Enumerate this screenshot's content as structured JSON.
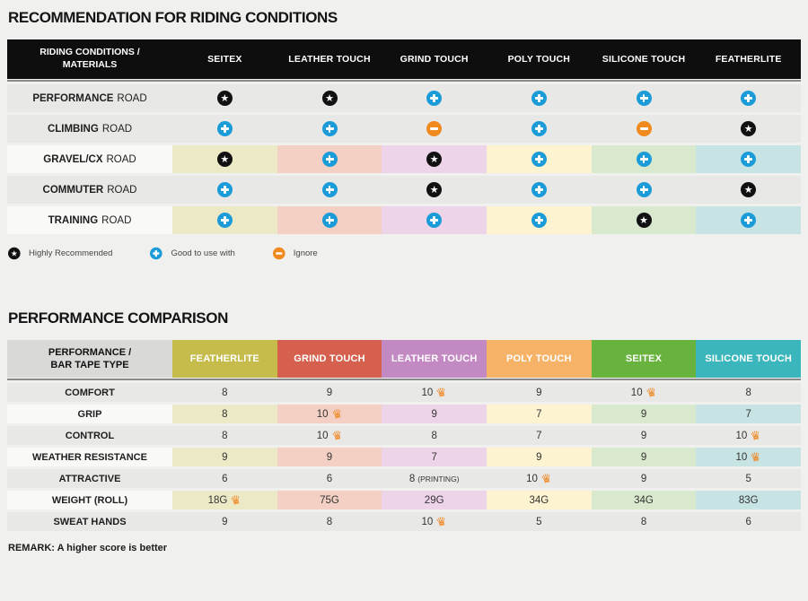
{
  "colors": {
    "icon_star_bg": "#111111",
    "icon_plus_bg": "#1b9cd8",
    "icon_minus_bg": "#f08a1e",
    "crown": "#f0861f",
    "column_tints": [
      "#eceac6",
      "#f3d0c3",
      "#eed4e9",
      "#fdf3d0",
      "#d8e9ce",
      "#c8e3e4"
    ]
  },
  "section1": {
    "title": "RECOMMENDATION FOR RIDING CONDITIONS",
    "table": {
      "corner_line1": "RIDING CONDITIONS /",
      "corner_line2": "MATERIALS",
      "columns": [
        "SEITEX",
        "LEATHER TOUCH",
        "GRIND TOUCH",
        "POLY TOUCH",
        "SILICONE TOUCH",
        "FEATHERLITE"
      ],
      "rows": [
        {
          "label_bold": "PERFORMANCE",
          "label_rest": "ROAD",
          "tinted": false,
          "marks": [
            "star",
            "star",
            "plus",
            "plus",
            "plus",
            "plus"
          ]
        },
        {
          "label_bold": "CLIMBING",
          "label_rest": "ROAD",
          "tinted": false,
          "marks": [
            "plus",
            "plus",
            "minus",
            "plus",
            "minus",
            "star"
          ]
        },
        {
          "label_bold": "GRAVEL/CX",
          "label_rest": "ROAD",
          "tinted": true,
          "marks": [
            "star",
            "plus",
            "star",
            "plus",
            "plus",
            "plus"
          ]
        },
        {
          "label_bold": "COMMUTER",
          "label_rest": "ROAD",
          "tinted": false,
          "marks": [
            "plus",
            "plus",
            "star",
            "plus",
            "plus",
            "star"
          ]
        },
        {
          "label_bold": "TRAINING",
          "label_rest": "ROAD",
          "tinted": true,
          "marks": [
            "plus",
            "plus",
            "plus",
            "plus",
            "star",
            "plus"
          ]
        }
      ]
    },
    "legend": [
      {
        "icon": "star",
        "label": "Highly Recommended"
      },
      {
        "icon": "plus",
        "label": "Good to use with"
      },
      {
        "icon": "minus",
        "label": "Ignore"
      }
    ]
  },
  "section2": {
    "title": "PERFORMANCE COMPARISON",
    "table": {
      "corner_line1": "PERFORMANCE /",
      "corner_line2": "BAR TAPE TYPE",
      "columns": [
        {
          "label": "FEATHERLITE",
          "color": "#c5bc4b"
        },
        {
          "label": "GRIND TOUCH",
          "color": "#d5604d"
        },
        {
          "label": "LEATHER TOUCH",
          "color": "#c389c2"
        },
        {
          "label": "POLY TOUCH",
          "color": "#f6b368"
        },
        {
          "label": "SEITEX",
          "color": "#67b33e"
        },
        {
          "label": "SILICONE TOUCH",
          "color": "#3cb6bd"
        }
      ],
      "rows": [
        {
          "label": "COMFORT",
          "tinted": false,
          "cells": [
            {
              "v": "8"
            },
            {
              "v": "9"
            },
            {
              "v": "10",
              "crown": true
            },
            {
              "v": "9"
            },
            {
              "v": "10",
              "crown": true
            },
            {
              "v": "8"
            }
          ]
        },
        {
          "label": "GRIP",
          "tinted": true,
          "cells": [
            {
              "v": "8"
            },
            {
              "v": "10",
              "crown": true
            },
            {
              "v": "9"
            },
            {
              "v": "7"
            },
            {
              "v": "9"
            },
            {
              "v": "7"
            }
          ]
        },
        {
          "label": "CONTROL",
          "tinted": false,
          "cells": [
            {
              "v": "8"
            },
            {
              "v": "10",
              "crown": true
            },
            {
              "v": "8"
            },
            {
              "v": "7"
            },
            {
              "v": "9"
            },
            {
              "v": "10",
              "crown": true
            }
          ]
        },
        {
          "label": "WEATHER RESISTANCE",
          "tinted": true,
          "cells": [
            {
              "v": "9"
            },
            {
              "v": "9"
            },
            {
              "v": "7"
            },
            {
              "v": "9"
            },
            {
              "v": "9"
            },
            {
              "v": "10",
              "crown": true
            }
          ]
        },
        {
          "label": "ATTRACTIVE",
          "tinted": false,
          "cells": [
            {
              "v": "6"
            },
            {
              "v": "6"
            },
            {
              "v": "8",
              "note": "(PRINTING)"
            },
            {
              "v": "10",
              "crown": true
            },
            {
              "v": "9"
            },
            {
              "v": "5"
            }
          ]
        },
        {
          "label": "WEIGHT (ROLL)",
          "tinted": true,
          "cells": [
            {
              "v": "18G",
              "crown": true
            },
            {
              "v": "75G"
            },
            {
              "v": "29G"
            },
            {
              "v": "34G"
            },
            {
              "v": "34G"
            },
            {
              "v": "83G"
            }
          ]
        },
        {
          "label": "SWEAT HANDS",
          "tinted": false,
          "cells": [
            {
              "v": "9"
            },
            {
              "v": "8"
            },
            {
              "v": "10",
              "crown": true
            },
            {
              "v": "5"
            },
            {
              "v": "8"
            },
            {
              "v": "6"
            }
          ]
        }
      ]
    },
    "remark": "REMARK: A higher score is better"
  }
}
